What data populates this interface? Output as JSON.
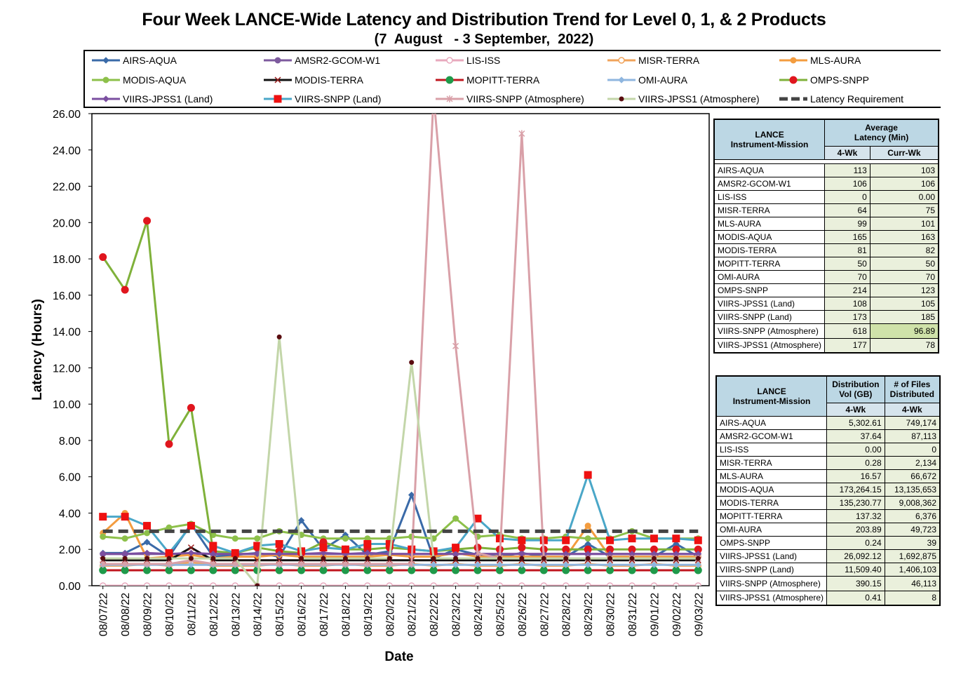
{
  "title": "Four Week LANCE-Wide Latency and Distribution Trend for Level 0, 1, & 2 Products",
  "subtitle": "(7  August   - 3 September,  2022)",
  "chart_data": {
    "type": "line",
    "xlabel": "Date",
    "ylabel": "Latency (Hours)",
    "ylim": [
      0,
      26
    ],
    "yticks": [
      "0.00",
      "2.00",
      "4.00",
      "6.00",
      "8.00",
      "10.00",
      "12.00",
      "14.00",
      "16.00",
      "18.00",
      "20.00",
      "22.00",
      "24.00",
      "26.00"
    ],
    "categories": [
      "08/07/22",
      "08/08/22",
      "08/09/22",
      "08/10/22",
      "08/11/22",
      "08/12/22",
      "08/13/22",
      "08/14/22",
      "08/15/22",
      "08/16/22",
      "08/17/22",
      "08/18/22",
      "08/19/22",
      "08/20/22",
      "08/21/22",
      "08/22/22",
      "08/23/22",
      "08/24/22",
      "08/25/22",
      "08/26/22",
      "08/27/22",
      "08/28/22",
      "08/29/22",
      "08/30/22",
      "08/31/22",
      "09/01/22",
      "09/02/22",
      "09/03/22"
    ],
    "series": [
      {
        "name": "AIRS-AQUA",
        "color": "#3a6aa8",
        "marker": "diamond",
        "values": [
          1.8,
          1.8,
          2.4,
          1.6,
          3.4,
          1.6,
          1.7,
          1.8,
          1.6,
          3.6,
          2.0,
          2.8,
          1.7,
          1.9,
          5.0,
          1.5,
          2.0,
          1.7,
          1.6,
          1.8,
          1.6,
          1.6,
          2.3,
          1.6,
          1.6,
          1.6,
          2.3,
          1.6
        ]
      },
      {
        "name": "AMSR2-GCOM-W1",
        "color": "#7d5a9e",
        "marker": "circle",
        "values": [
          1.75,
          1.75,
          1.75,
          1.75,
          1.75,
          1.75,
          1.75,
          1.75,
          1.75,
          1.75,
          1.75,
          1.75,
          1.75,
          1.75,
          1.75,
          1.75,
          1.75,
          1.75,
          1.75,
          1.75,
          1.75,
          1.75,
          1.75,
          1.75,
          1.75,
          1.75,
          1.75,
          1.75
        ]
      },
      {
        "name": "LIS-ISS",
        "color": "#e8a9bd",
        "marker": "circle-open",
        "values": [
          0,
          0,
          0,
          0,
          0,
          0,
          0,
          0,
          0,
          0,
          0,
          0,
          0,
          0,
          0,
          0,
          0,
          0,
          0,
          0,
          0,
          0,
          0,
          0,
          0,
          0,
          0,
          0
        ]
      },
      {
        "name": "MISR-TERRA",
        "color": "#f0a35a",
        "marker": "circle-open",
        "values": [
          1.1,
          1.1,
          1.2,
          1.1,
          1.3,
          1.1,
          1.1,
          1.1,
          1.2,
          1.1,
          1.1,
          1.2,
          1.1,
          1.1,
          1.2,
          1.1,
          1.2,
          1.1,
          1.1,
          1.2,
          1.1,
          1.1,
          1.2,
          1.1,
          1.1,
          1.2,
          1.1,
          1.1
        ]
      },
      {
        "name": "MLS-AURA",
        "color": "#f39c3f",
        "marker": "circle",
        "values": [
          2.9,
          4.0,
          1.5,
          1.6,
          1.7,
          1.5,
          1.6,
          1.6,
          1.7,
          1.6,
          1.6,
          1.6,
          1.6,
          1.7,
          1.6,
          1.6,
          1.8,
          1.6,
          1.6,
          1.6,
          1.6,
          1.6,
          3.3,
          1.6,
          1.6,
          1.6,
          1.6,
          1.6
        ]
      },
      {
        "name": "MODIS-AQUA",
        "color": "#8dc04a",
        "marker": "circle",
        "values": [
          2.7,
          2.6,
          2.9,
          3.2,
          3.4,
          2.8,
          2.6,
          2.6,
          3.0,
          2.8,
          2.6,
          2.6,
          2.6,
          2.6,
          2.7,
          2.6,
          3.7,
          2.7,
          2.8,
          2.6,
          2.6,
          2.7,
          2.6,
          2.6,
          3.0,
          2.6,
          2.6,
          2.6
        ]
      },
      {
        "name": "MODIS-TERRA",
        "color": "#111111",
        "marker": "x",
        "values": [
          1.4,
          1.4,
          1.4,
          1.4,
          2.1,
          1.4,
          1.4,
          1.4,
          1.4,
          1.4,
          1.4,
          1.4,
          1.4,
          1.4,
          1.4,
          1.4,
          1.4,
          1.4,
          1.4,
          1.4,
          1.4,
          1.4,
          1.4,
          1.4,
          1.4,
          1.4,
          1.4,
          1.4
        ]
      },
      {
        "name": "MOPITT-TERRA",
        "color": "#c0161e",
        "marker": "circle-green",
        "values": [
          0.85,
          0.85,
          0.85,
          0.85,
          0.85,
          0.85,
          0.85,
          0.85,
          0.85,
          0.85,
          0.85,
          0.85,
          0.85,
          0.85,
          0.85,
          0.85,
          0.85,
          0.85,
          0.85,
          0.85,
          0.85,
          0.85,
          0.85,
          0.85,
          0.85,
          0.85,
          0.85,
          0.85
        ]
      },
      {
        "name": "OMI-AURA",
        "color": "#8fb6df",
        "marker": "diamond",
        "values": [
          1.15,
          1.15,
          1.15,
          1.15,
          1.15,
          1.15,
          1.15,
          1.15,
          1.15,
          1.15,
          1.15,
          1.15,
          1.15,
          1.15,
          1.15,
          1.15,
          1.15,
          1.15,
          1.15,
          1.15,
          1.15,
          1.15,
          1.15,
          1.15,
          1.15,
          1.15,
          1.15,
          1.15
        ]
      },
      {
        "name": "OMPS-SNPP",
        "color": "#7fb13a",
        "marker": "circle-red",
        "values": [
          18.1,
          16.3,
          20.1,
          7.8,
          9.8,
          1.9,
          1.8,
          2.1,
          1.9,
          1.8,
          2.4,
          2.0,
          2.0,
          2.1,
          2.0,
          1.9,
          2.0,
          2.1,
          2.0,
          2.1,
          2.0,
          2.0,
          2.0,
          2.0,
          2.0,
          2.0,
          2.0,
          2.0
        ]
      },
      {
        "name": "VIIRS-JPSS1 (Land)",
        "color": "#7b4fa0",
        "marker": "diamond",
        "values": [
          1.75,
          1.75,
          1.8,
          1.75,
          1.8,
          1.75,
          1.75,
          1.75,
          1.75,
          1.75,
          1.8,
          1.75,
          1.8,
          1.75,
          1.75,
          1.75,
          1.75,
          1.75,
          1.75,
          1.75,
          1.75,
          1.75,
          1.75,
          1.75,
          1.75,
          1.75,
          1.75,
          1.75
        ]
      },
      {
        "name": "VIIRS-SNPP (Land)",
        "color": "#4aa7c8",
        "marker": "square-red",
        "values": [
          3.8,
          3.8,
          3.3,
          1.8,
          3.3,
          2.2,
          1.8,
          2.2,
          2.3,
          1.9,
          2.1,
          2.0,
          2.3,
          2.3,
          2.0,
          1.9,
          2.1,
          3.7,
          2.6,
          2.5,
          2.5,
          2.5,
          6.1,
          2.5,
          2.6,
          2.6,
          2.6,
          2.5
        ]
      },
      {
        "name": "VIIRS-SNPP (Atmosphere)",
        "color": "#d9a0a8",
        "marker": "star",
        "values": [
          1.2,
          1.2,
          1.2,
          1.2,
          1.4,
          1.2,
          1.2,
          1.2,
          1.2,
          1.2,
          1.2,
          1.2,
          1.2,
          1.2,
          1.2,
          27.0,
          13.2,
          1.8,
          1.5,
          24.9,
          1.5,
          1.5,
          1.5,
          1.5,
          1.5,
          1.5,
          1.5,
          1.5
        ]
      },
      {
        "name": "VIIRS-JPSS1 (Atmosphere)",
        "color": "#c3d6a9",
        "marker": "dot-dark",
        "values": [
          1.5,
          1.5,
          1.5,
          1.5,
          1.5,
          1.5,
          1.5,
          0.0,
          13.7,
          1.5,
          1.5,
          1.5,
          1.5,
          1.5,
          12.3,
          1.5,
          1.5,
          1.5,
          1.5,
          1.5,
          1.5,
          1.5,
          1.5,
          1.5,
          1.5,
          1.5,
          1.5,
          1.5
        ]
      },
      {
        "name": "Latency Requirement",
        "color": "#555555",
        "marker": "dash",
        "values": [
          3,
          3,
          3,
          3,
          3,
          3,
          3,
          3,
          3,
          3,
          3,
          3,
          3,
          3,
          3,
          3,
          3,
          3,
          3,
          3,
          3,
          3,
          3,
          3,
          3,
          3,
          3,
          3
        ]
      }
    ]
  },
  "latency_table": {
    "header_col1": "LANCE\nInstrument-Mission",
    "header_avg": "Average\nLatency (Min)",
    "sub_4wk": "4-Wk",
    "sub_curr": "Curr-Wk",
    "rows": [
      {
        "name": "AIRS-AQUA",
        "wk4": "113",
        "curr": "103"
      },
      {
        "name": "AMSR2-GCOM-W1",
        "wk4": "106",
        "curr": "106"
      },
      {
        "name": "LIS-ISS",
        "wk4": "0",
        "curr": "0.00"
      },
      {
        "name": "MISR-TERRA",
        "wk4": "64",
        "curr": "75"
      },
      {
        "name": "MLS-AURA",
        "wk4": "99",
        "curr": "101"
      },
      {
        "name": "MODIS-AQUA",
        "wk4": "165",
        "curr": "163"
      },
      {
        "name": "MODIS-TERRA",
        "wk4": "81",
        "curr": "82"
      },
      {
        "name": "MOPITT-TERRA",
        "wk4": "50",
        "curr": "50"
      },
      {
        "name": "OMI-AURA",
        "wk4": "70",
        "curr": "70"
      },
      {
        "name": "OMPS-SNPP",
        "wk4": "214",
        "curr": "123"
      },
      {
        "name": "VIIRS-JPSS1 (Land)",
        "wk4": "108",
        "curr": "105"
      },
      {
        "name": "VIIRS-SNPP (Land)",
        "wk4": "173",
        "curr": "185"
      },
      {
        "name": "VIIRS-SNPP (Atmosphere)",
        "wk4": "618",
        "curr": "96.89"
      },
      {
        "name": "VIIRS-JPSS1 (Atmosphere)",
        "wk4": "177",
        "curr": "78"
      }
    ]
  },
  "distribution_table": {
    "header_col1": "LANCE\nInstrument-Mission",
    "header_vol": "Distribution\nVol (GB)",
    "header_files": "# of Files\nDistributed",
    "sub_vol": "4-Wk",
    "sub_files": "4-Wk",
    "rows": [
      {
        "name": "AIRS-AQUA",
        "vol": "5,302.61",
        "files": "749,174"
      },
      {
        "name": "AMSR2-GCOM-W1",
        "vol": "37.64",
        "files": "87,113"
      },
      {
        "name": "LIS-ISS",
        "vol": "0.00",
        "files": "0"
      },
      {
        "name": "MISR-TERRA",
        "vol": "0.28",
        "files": "2,134"
      },
      {
        "name": "MLS-AURA",
        "vol": "16.57",
        "files": "66,672"
      },
      {
        "name": "MODIS-AQUA",
        "vol": "173,264.15",
        "files": "13,135,653"
      },
      {
        "name": "MODIS-TERRA",
        "vol": "135,230.77",
        "files": "9,008,362"
      },
      {
        "name": "MOPITT-TERRA",
        "vol": "137.32",
        "files": "6,376"
      },
      {
        "name": "OMI-AURA",
        "vol": "203.89",
        "files": "49,723"
      },
      {
        "name": "OMPS-SNPP",
        "vol": "0.24",
        "files": "39"
      },
      {
        "name": "VIIRS-JPSS1 (Land)",
        "vol": "26,092.12",
        "files": "1,692,875"
      },
      {
        "name": "VIIRS-SNPP (Land)",
        "vol": "11,509.40",
        "files": "1,406,103"
      },
      {
        "name": "VIIRS-SNPP (Atmosphere)",
        "vol": "390.15",
        "files": "46,113"
      },
      {
        "name": "VIIRS-JPSS1 (Atmosphere)",
        "vol": "0.41",
        "files": "8"
      }
    ]
  }
}
